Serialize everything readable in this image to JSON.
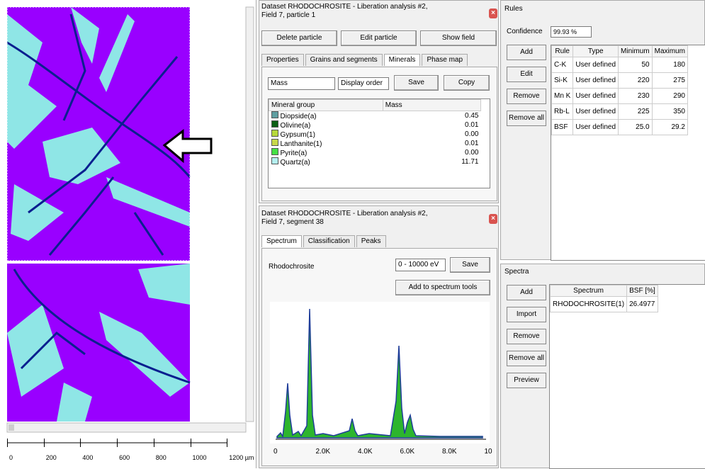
{
  "map": {
    "scale_labels": [
      "0",
      "200",
      "400",
      "600",
      "800",
      "1000",
      "1200 µm"
    ]
  },
  "particle_panel": {
    "title": [
      "Dataset RHODOCHROSITE - Liberation analysis #2,",
      "Field 7, particle 1"
    ],
    "buttons": [
      "Delete particle",
      "Edit particle",
      "Show field"
    ],
    "tabs": [
      "Properties",
      "Grains and segments",
      "Minerals",
      "Phase map"
    ],
    "measure": "Mass",
    "order": "Display order",
    "save": "Save",
    "copy": "Copy",
    "table": {
      "columns": [
        "Mineral group",
        "Mass"
      ],
      "rows": [
        [
          "Diopside(a)",
          "0.45"
        ],
        [
          "Olivine(a)",
          "0.01"
        ],
        [
          "Gypsum(1)",
          "0.00"
        ],
        [
          "Lanthanite(1)",
          "0.01"
        ],
        [
          "Pyrite(a)",
          "0.00"
        ],
        [
          "Quartz(a)",
          "11.71"
        ]
      ]
    }
  },
  "segment_panel": {
    "title": [
      "Dataset RHODOCHROSITE - Liberation analysis #2,",
      "Field 7, segment 38"
    ],
    "tabs": [
      "Spectrum",
      "Classification",
      "Peaks"
    ],
    "label": "Rhodochrosite",
    "range": "0 - 10000 eV",
    "save": "Save",
    "add": "Add to spectrum tools",
    "axis_labels": [
      "0",
      "2.0K",
      "4.0K",
      "6.0K",
      "8.0K",
      "10"
    ]
  },
  "rules": {
    "heading": "Rules",
    "confidence_label": "Confidence",
    "confidence": "99.93 %",
    "buttons": [
      "Add",
      "Edit",
      "Remove",
      "Remove all"
    ],
    "table": {
      "columns": [
        "Rule",
        "Type",
        "Minimum",
        "Maximum"
      ],
      "rows": [
        [
          "C-K",
          "User defined",
          "50",
          "180"
        ],
        [
          "Si-K",
          "User defined",
          "220",
          "275"
        ],
        [
          "Mn K",
          "User defined",
          "230",
          "290"
        ],
        [
          "Rb-L",
          "User defined",
          "225",
          "350"
        ],
        [
          "BSF",
          "User defined",
          "25.0",
          "29.2"
        ]
      ]
    }
  },
  "spectra": {
    "heading": "Spectra",
    "buttons": [
      "Add",
      "Import",
      "Remove",
      "Remove all",
      "Preview"
    ],
    "table": {
      "columns": [
        "Spectrum",
        "BSF [%]"
      ],
      "rows": [
        [
          "RHODOCHROSITE(1)",
          "26.4977"
        ]
      ]
    }
  }
}
